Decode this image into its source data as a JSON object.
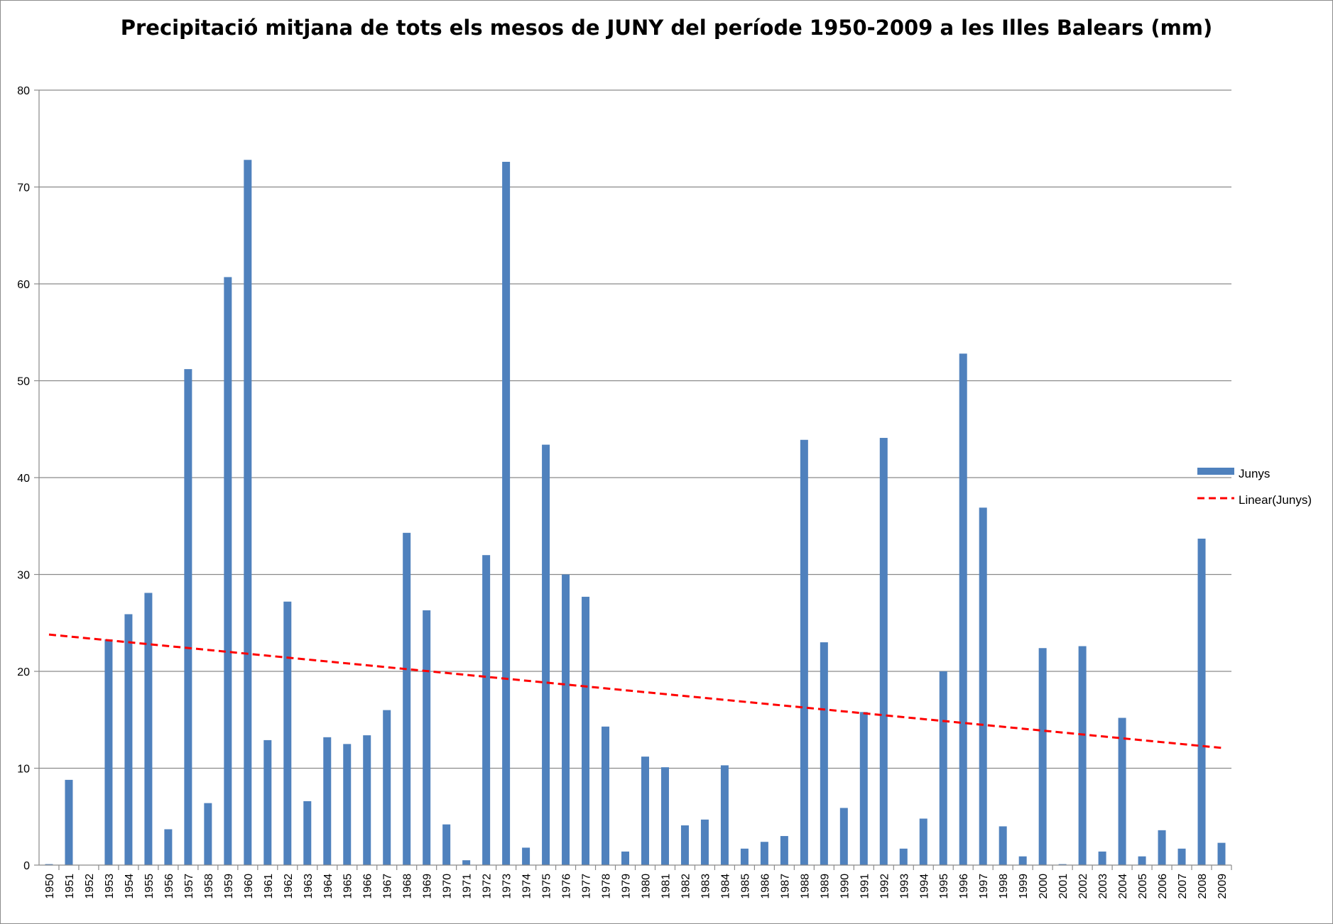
{
  "chart_data": {
    "type": "bar",
    "title": "Precipitació mitjana de tots els mesos de JUNY del període 1950-2009 a les Illes Balears (mm)",
    "xlabel": "",
    "ylabel": "",
    "ylim": [
      0,
      80
    ],
    "yticks": [
      0,
      10,
      20,
      30,
      40,
      50,
      60,
      70,
      80
    ],
    "grid": true,
    "legend_position": "right",
    "categories": [
      "1950",
      "1951",
      "1952",
      "1953",
      "1954",
      "1955",
      "1956",
      "1957",
      "1958",
      "1959",
      "1960",
      "1961",
      "1962",
      "1963",
      "1964",
      "1965",
      "1966",
      "1967",
      "1968",
      "1969",
      "1970",
      "1971",
      "1972",
      "1973",
      "1974",
      "1975",
      "1976",
      "1977",
      "1978",
      "1979",
      "1980",
      "1981",
      "1982",
      "1983",
      "1984",
      "1985",
      "1986",
      "1987",
      "1988",
      "1989",
      "1990",
      "1991",
      "1992",
      "1993",
      "1994",
      "1995",
      "1996",
      "1997",
      "1998",
      "1999",
      "2000",
      "2001",
      "2002",
      "2003",
      "2004",
      "2005",
      "2006",
      "2007",
      "2008",
      "2009"
    ],
    "series": [
      {
        "name": "Junys",
        "color": "#4f81bd",
        "values": [
          0.1,
          8.8,
          0.0,
          23.3,
          25.9,
          28.1,
          3.7,
          51.2,
          6.4,
          60.7,
          72.8,
          12.9,
          27.2,
          6.6,
          13.2,
          12.5,
          13.4,
          16.0,
          34.3,
          26.3,
          4.2,
          0.5,
          32.0,
          72.6,
          1.8,
          43.4,
          30.0,
          27.7,
          14.3,
          1.4,
          11.2,
          10.1,
          4.1,
          4.7,
          10.3,
          1.7,
          2.4,
          3.0,
          43.9,
          23.0,
          5.9,
          15.8,
          44.1,
          1.7,
          4.8,
          20.0,
          52.8,
          36.9,
          4.0,
          0.9,
          22.4,
          0.1,
          22.6,
          1.4,
          15.2,
          0.9,
          3.6,
          1.7,
          33.7,
          2.3
        ]
      }
    ],
    "trendline": {
      "name": "Linear(Junys)",
      "type": "linear",
      "color": "#ff0000",
      "start_value": 23.8,
      "end_value": 12.1
    }
  }
}
